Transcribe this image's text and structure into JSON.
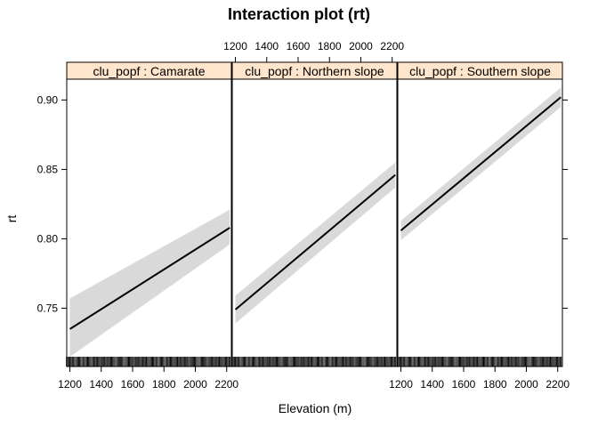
{
  "chart_data": {
    "type": "line",
    "title": "Interaction plot (rt)",
    "xlabel": "Elevation (m)",
    "ylabel": "rt",
    "xlim": [
      1180,
      2230
    ],
    "ylim": [
      0.708,
      0.915
    ],
    "xticks": [
      1200,
      1400,
      1600,
      1800,
      2000,
      2200
    ],
    "yticks": [
      0.75,
      0.8,
      0.85,
      0.9
    ],
    "ytick_labels": [
      "0.75",
      "0.80",
      "0.85",
      "0.90"
    ],
    "strip_prefix": "clu_popf : ",
    "colors": {
      "strip": "#ffe5cc",
      "band": "#d9d9d9",
      "line": "#000000"
    },
    "panels": [
      {
        "label": "clu_popf : Camarate",
        "x": [
          1200,
          2220
        ],
        "y": [
          0.735,
          0.808
        ],
        "lower": [
          0.715,
          0.796
        ],
        "upper": [
          0.757,
          0.821
        ]
      },
      {
        "label": "clu_popf : Northern slope",
        "x": [
          1200,
          2220
        ],
        "y": [
          0.749,
          0.846
        ],
        "lower": [
          0.739,
          0.837
        ],
        "upper": [
          0.759,
          0.855
        ]
      },
      {
        "label": "clu_popf : Southern slope",
        "x": [
          1200,
          2220
        ],
        "y": [
          0.806,
          0.902
        ],
        "lower": [
          0.799,
          0.895
        ],
        "upper": [
          0.813,
          0.909
        ]
      }
    ]
  }
}
